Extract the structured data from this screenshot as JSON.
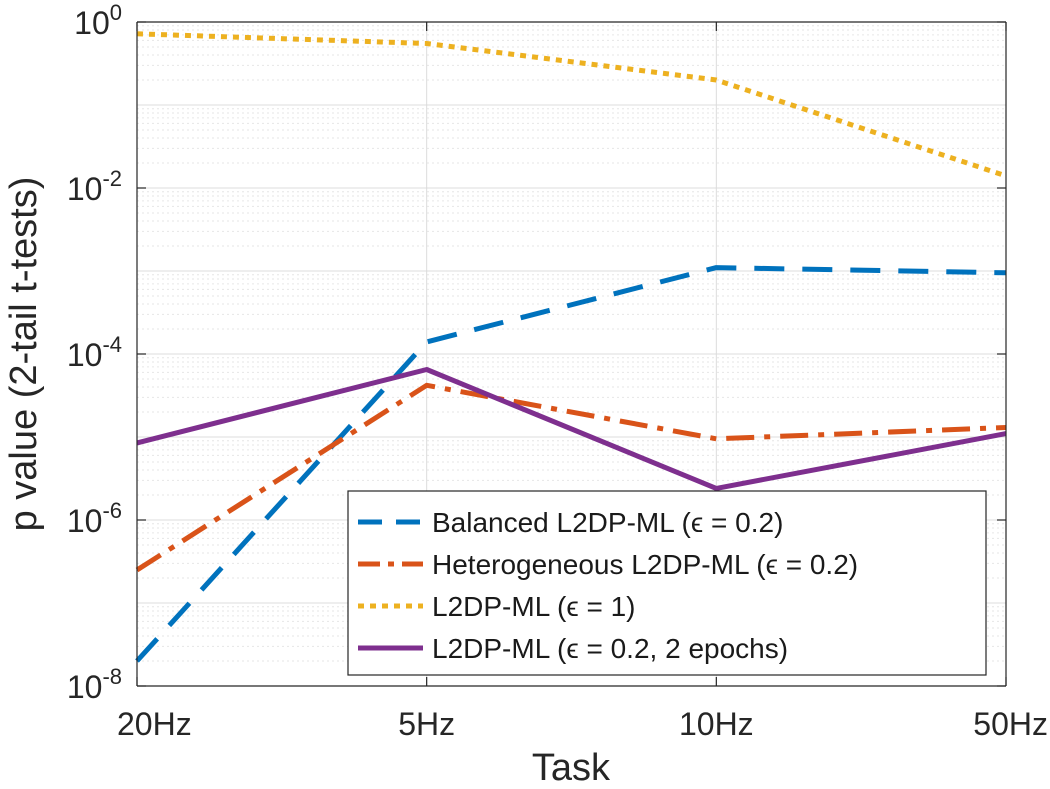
{
  "chart_data": {
    "type": "line",
    "title": "",
    "xlabel": "Task",
    "ylabel": "p value (2-tail t-tests)",
    "categories": [
      "20Hz",
      "5Hz",
      "10Hz",
      "50Hz"
    ],
    "y_scale": "log",
    "ylim": [
      1e-08,
      1
    ],
    "y_ticks": [
      {
        "value": 1,
        "base": "10",
        "exp": "0"
      },
      {
        "value": 0.01,
        "base": "10",
        "exp": "-2"
      },
      {
        "value": 0.0001,
        "base": "10",
        "exp": "-4"
      },
      {
        "value": 1e-06,
        "base": "10",
        "exp": "-6"
      },
      {
        "value": 1e-08,
        "base": "10",
        "exp": "-8"
      }
    ],
    "grid": true,
    "legend_position": "bottom-right",
    "series": [
      {
        "name": "Balanced L2DP-ML (ϵ = 0.2)",
        "color": "#0072BD",
        "dash": "dashed",
        "values": [
          2e-08,
          0.00014,
          0.0011,
          0.00095
        ]
      },
      {
        "name": "Heterogeneous L2DP-ML (ϵ = 0.2)",
        "color": "#D95319",
        "dash": "dashdot",
        "values": [
          2.5e-07,
          4.2e-05,
          9.5e-06,
          1.3e-05
        ]
      },
      {
        "name": "L2DP-ML (ϵ = 1)",
        "color": "#EDB120",
        "dash": "dotted",
        "values": [
          0.72,
          0.55,
          0.2,
          0.014
        ]
      },
      {
        "name": "L2DP-ML (ϵ = 0.2, 2 epochs)",
        "color": "#7E2F8E",
        "dash": "solid",
        "values": [
          8.5e-06,
          6.5e-05,
          2.4e-06,
          1.1e-05
        ]
      }
    ]
  }
}
